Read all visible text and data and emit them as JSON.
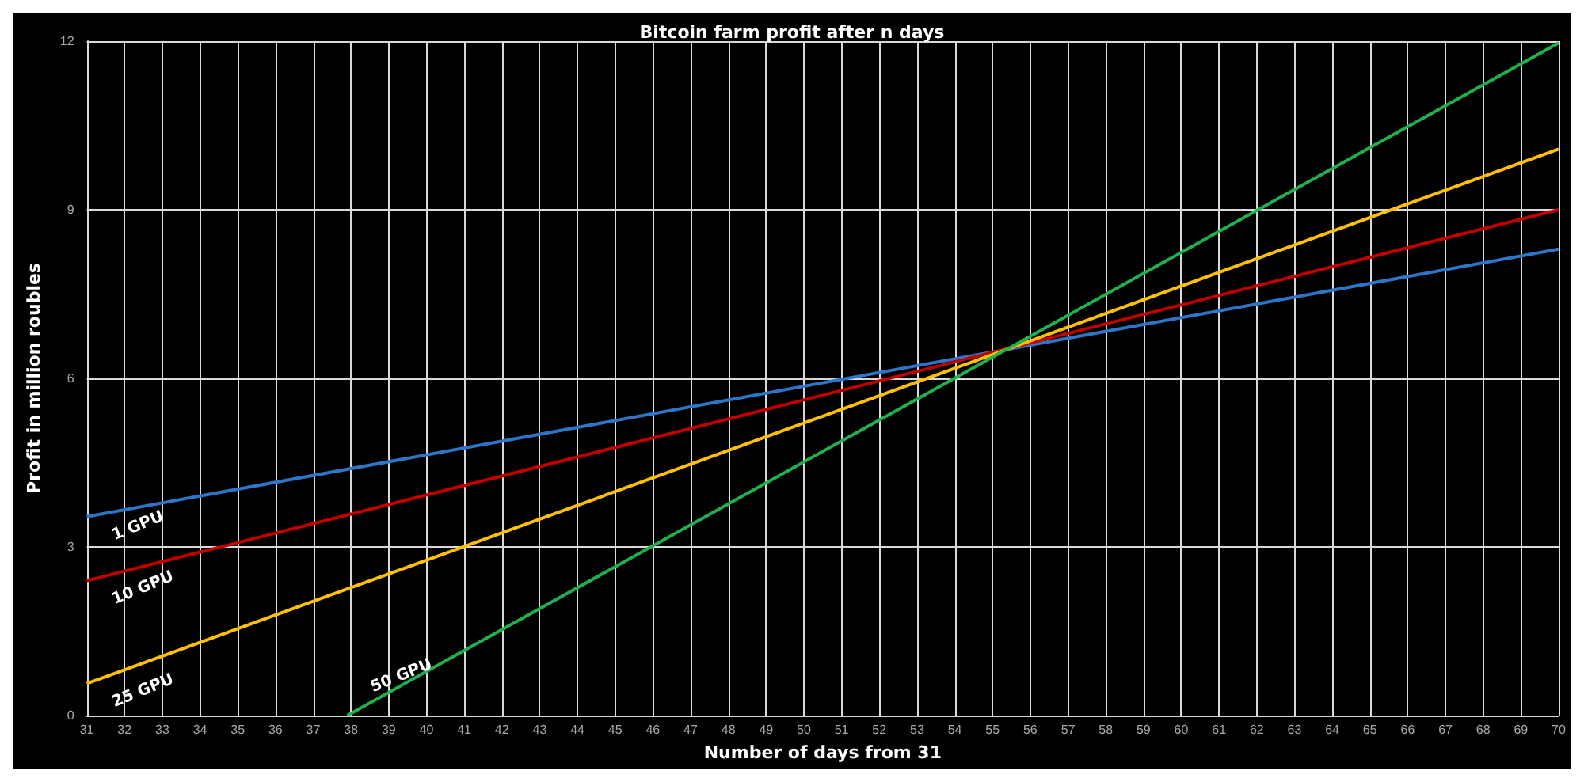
{
  "chart_data": {
    "type": "line",
    "title": "Bitcoin farm profit after n days",
    "xlabel": "Number of days from 31",
    "ylabel": "Profit in million roubles",
    "xlim": [
      31,
      70
    ],
    "xticks": [
      31,
      32,
      33,
      34,
      35,
      36,
      37,
      38,
      39,
      40,
      41,
      42,
      43,
      44,
      45,
      46,
      47,
      48,
      49,
      50,
      51,
      52,
      53,
      54,
      55,
      56,
      57,
      58,
      59,
      60,
      61,
      62,
      63,
      64,
      65,
      66,
      67,
      68,
      69,
      70
    ],
    "ylim": [
      0,
      12
    ],
    "yticks": [
      0,
      3,
      6,
      9,
      12
    ],
    "grid": true,
    "marker": "none",
    "line_style": "solid",
    "series": [
      {
        "name": "1 GPU",
        "color": "#2e75c8",
        "x": [
          31,
          70
        ],
        "values": [
          3.54,
          8.3
        ]
      },
      {
        "name": "10 GPU",
        "color": "#c00000",
        "x": [
          31,
          70
        ],
        "values": [
          2.4,
          9.0
        ]
      },
      {
        "name": "25 GPU",
        "color": "#ffc000",
        "x": [
          31,
          70
        ],
        "values": [
          0.57,
          10.08
        ]
      },
      {
        "name": "50 GPU",
        "color": "#20b050",
        "x": [
          37.9,
          70
        ],
        "values": [
          0,
          11.97
        ]
      }
    ]
  }
}
